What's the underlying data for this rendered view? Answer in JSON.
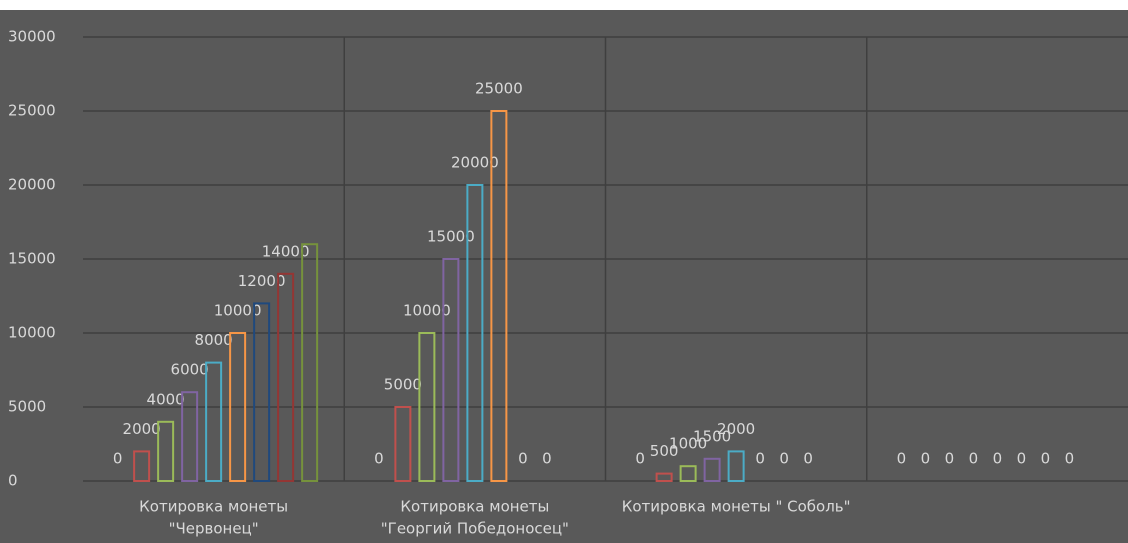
{
  "chart_data": {
    "type": "bar",
    "categories": [
      [
        "Котировка монеты",
        "\"Червонец\""
      ],
      [
        "Котировка монеты",
        "\"Георгий Победоносец\""
      ],
      [
        "Котировка монеты \" Соболь\""
      ],
      null
    ],
    "series": [
      {
        "color": "#4f81bd",
        "data_labels": true,
        "values": [
          0,
          0,
          0,
          0
        ]
      },
      {
        "color": "#c0504d",
        "data_labels": true,
        "values": [
          2000,
          5000,
          500,
          0
        ]
      },
      {
        "color": "#9bbb59",
        "data_labels": true,
        "values": [
          4000,
          10000,
          1000,
          0
        ]
      },
      {
        "color": "#8064a2",
        "data_labels": true,
        "values": [
          6000,
          15000,
          1500,
          0
        ]
      },
      {
        "color": "#4bacc6",
        "data_labels": true,
        "values": [
          8000,
          20000,
          2000,
          0
        ]
      },
      {
        "color": "#f79646",
        "data_labels": true,
        "values": [
          10000,
          25000,
          0,
          0
        ]
      },
      {
        "color": "#1f497d",
        "data_labels": true,
        "values": [
          12000,
          0,
          0,
          0
        ]
      },
      {
        "color": "#943634",
        "data_labels": true,
        "values": [
          14000,
          0,
          0,
          0
        ]
      },
      {
        "color": "#76923c",
        "data_labels": false,
        "values": [
          16000,
          0,
          0,
          0
        ]
      }
    ],
    "ylim": [
      0,
      30000
    ],
    "yticks": [
      0,
      5000,
      10000,
      15000,
      20000,
      25000,
      30000
    ],
    "grid": true
  }
}
